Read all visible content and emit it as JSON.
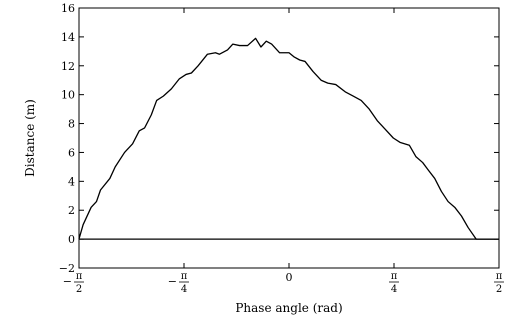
{
  "chart_data": {
    "type": "line",
    "title": "",
    "xlabel": "Phase angle (rad)",
    "ylabel": "Distance (m)",
    "xlim": [
      -1.5708,
      1.5708
    ],
    "ylim": [
      -2,
      16
    ],
    "grid": false,
    "legend": "none",
    "x_ticks": [
      {
        "value": -1.5708,
        "sign": "−",
        "num": "π",
        "den": "2"
      },
      {
        "value": -0.7854,
        "sign": "−",
        "num": "π",
        "den": "4"
      },
      {
        "value": 0,
        "text": "0"
      },
      {
        "value": 0.7854,
        "sign": "",
        "num": "π",
        "den": "4"
      },
      {
        "value": 1.5708,
        "sign": "",
        "num": "π",
        "den": "2"
      }
    ],
    "y_ticks": [
      {
        "value": -2,
        "label": "−2"
      },
      {
        "value": 0,
        "label": "0"
      },
      {
        "value": 2,
        "label": "2"
      },
      {
        "value": 4,
        "label": "4"
      },
      {
        "value": 6,
        "label": "6"
      },
      {
        "value": 8,
        "label": "8"
      },
      {
        "value": 10,
        "label": "10"
      },
      {
        "value": 12,
        "label": "12"
      },
      {
        "value": 14,
        "label": "14"
      },
      {
        "value": 16,
        "label": "16"
      }
    ],
    "series": [
      {
        "color": "#000000",
        "x": [
          -1.571,
          -1.54,
          -1.48,
          -1.44,
          -1.41,
          -1.34,
          -1.3,
          -1.23,
          -1.17,
          -1.12,
          -1.08,
          -1.03,
          -0.99,
          -0.94,
          -0.88,
          -0.82,
          -0.77,
          -0.73,
          -0.68,
          -0.61,
          -0.55,
          -0.52,
          -0.46,
          -0.42,
          -0.37,
          -0.31,
          -0.25,
          -0.21,
          -0.17,
          -0.13,
          -0.07,
          0.0,
          0.04,
          0.08,
          0.12,
          0.18,
          0.24,
          0.29,
          0.35,
          0.42,
          0.48,
          0.54,
          0.6,
          0.66,
          0.72,
          0.78,
          0.83,
          0.9,
          0.95,
          1.0,
          1.04,
          1.09,
          1.14,
          1.19,
          1.24,
          1.29,
          1.34,
          1.4,
          1.45,
          1.5,
          1.571
        ],
        "y": [
          0.0,
          1.0,
          2.2,
          2.6,
          3.4,
          4.2,
          5.0,
          6.0,
          6.6,
          7.5,
          7.7,
          8.6,
          9.6,
          9.9,
          10.4,
          11.1,
          11.4,
          11.5,
          12.0,
          12.8,
          12.9,
          12.8,
          13.1,
          13.5,
          13.4,
          13.4,
          13.9,
          13.3,
          13.7,
          13.5,
          12.9,
          12.9,
          12.6,
          12.4,
          12.3,
          11.6,
          11.0,
          10.8,
          10.7,
          10.2,
          9.9,
          9.6,
          9.0,
          8.2,
          7.6,
          7.0,
          6.7,
          6.5,
          5.7,
          5.3,
          4.8,
          4.2,
          3.3,
          2.6,
          2.2,
          1.6,
          0.8,
          0.0,
          0.0,
          0.0,
          0.0
        ]
      }
    ]
  }
}
